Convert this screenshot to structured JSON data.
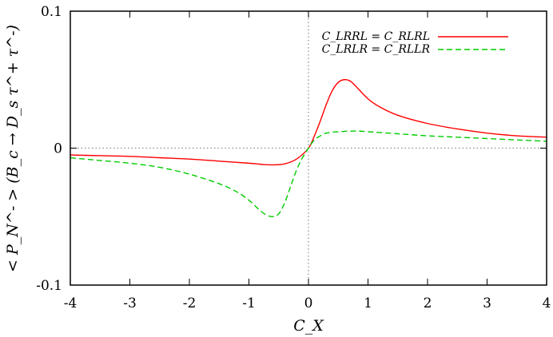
{
  "chart_data": {
    "type": "line",
    "xlabel": "C_X",
    "ylabel": "< P_N^- > (B_c → D_s τ^+ τ^-)",
    "xlim": [
      -4,
      4
    ],
    "ylim": [
      -0.1,
      0.1
    ],
    "xticks": [
      -4,
      -3,
      -2,
      -1,
      0,
      1,
      2,
      3,
      4
    ],
    "yticks": [
      -0.1,
      0,
      0.1
    ],
    "xtick_labels": [
      "-4",
      "-3",
      "-2",
      "-1",
      "0",
      "1",
      "2",
      "3",
      "4"
    ],
    "ytick_labels": [
      "-0.1",
      "0",
      "0.1"
    ],
    "zero_lines": true,
    "grid": false,
    "legend_position": "top-right",
    "series": [
      {
        "name": "C_LRRL = C_RLRL",
        "color": "#ff0000",
        "dash": "solid",
        "x": [
          -4,
          -3.5,
          -3,
          -2.5,
          -2,
          -1.5,
          -1,
          -0.8,
          -0.6,
          -0.4,
          -0.2,
          0,
          0.1,
          0.2,
          0.3,
          0.4,
          0.5,
          0.6,
          0.7,
          0.8,
          1,
          1.2,
          1.5,
          2,
          2.5,
          3,
          3.5,
          4
        ],
        "y": [
          -0.005,
          -0.0055,
          -0.006,
          -0.007,
          -0.008,
          -0.0095,
          -0.011,
          -0.0118,
          -0.0122,
          -0.0115,
          -0.008,
          0,
          0.009,
          0.02,
          0.032,
          0.042,
          0.048,
          0.05,
          0.049,
          0.045,
          0.036,
          0.03,
          0.024,
          0.018,
          0.014,
          0.011,
          0.009,
          0.008
        ]
      },
      {
        "name": "C_LRLR = C_RLLR",
        "color": "#00cc00",
        "dash": "dashed",
        "x": [
          -4,
          -3.5,
          -3,
          -2.5,
          -2,
          -1.5,
          -1.2,
          -1,
          -0.9,
          -0.8,
          -0.7,
          -0.6,
          -0.5,
          -0.4,
          -0.3,
          -0.2,
          -0.1,
          0,
          0.1,
          0.2,
          0.3,
          0.5,
          0.8,
          1,
          1.5,
          2,
          2.5,
          3,
          3.5,
          4
        ],
        "y": [
          -0.007,
          -0.009,
          -0.011,
          -0.014,
          -0.019,
          -0.026,
          -0.032,
          -0.038,
          -0.042,
          -0.046,
          -0.049,
          -0.05,
          -0.048,
          -0.04,
          -0.028,
          -0.016,
          -0.007,
          0,
          0.006,
          0.009,
          0.011,
          0.012,
          0.0125,
          0.012,
          0.0105,
          0.009,
          0.008,
          0.007,
          0.006,
          0.005
        ]
      }
    ]
  }
}
